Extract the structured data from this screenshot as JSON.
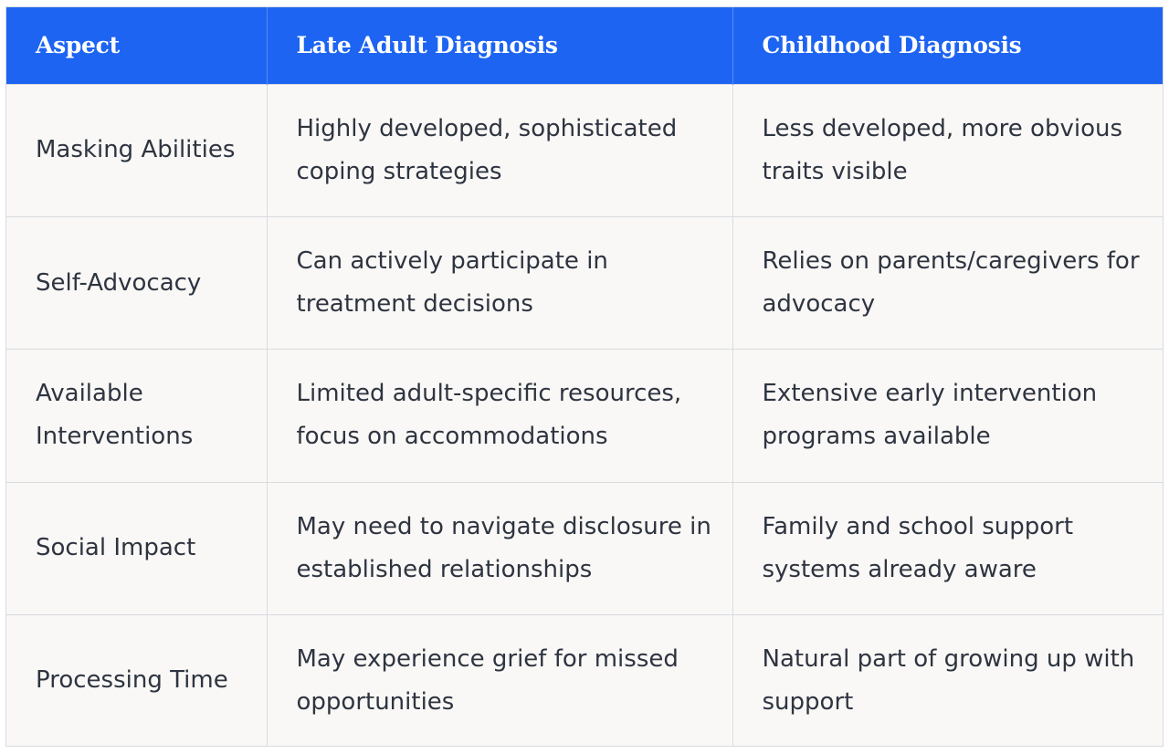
{
  "table": {
    "headers": [
      "Aspect",
      "Late Adult Diagnosis",
      "Childhood Diagnosis"
    ],
    "rows": [
      [
        "Masking Abilities",
        "Highly developed, sophisticated coping strategies",
        "Less developed, more obvious traits visible"
      ],
      [
        "Self-Advocacy",
        "Can actively participate in treatment decisions",
        "Relies on parents/caregivers for advocacy"
      ],
      [
        "Available Interventions",
        "Limited adult-specific resources, focus on accommodations",
        "Extensive early intervention programs available"
      ],
      [
        "Social Impact",
        "May need to navigate disclosure in established relationships",
        "Family and school support systems already aware"
      ],
      [
        "Processing Time",
        "May experience grief for missed opportunities",
        "Natural part of growing up with support"
      ]
    ]
  },
  "colors": {
    "header_bg": "#1d64f2",
    "header_text": "#ffffff",
    "body_bg": "#f9f8f6",
    "body_text": "#2e3440",
    "border": "#d9dbe0"
  }
}
